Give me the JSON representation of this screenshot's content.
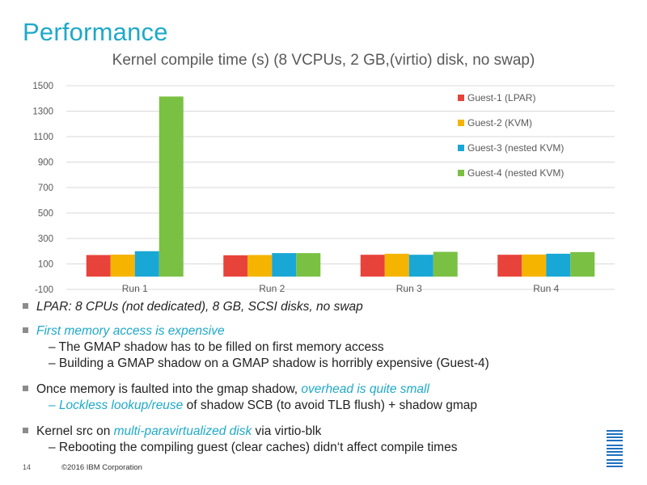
{
  "slide": {
    "title": "Performance",
    "page_number": "14",
    "copyright": "©2016 IBM Corporation",
    "logo_text": "IBM"
  },
  "chart_data": {
    "type": "bar",
    "title": "Kernel compile time (s) (8 VCPUs, 2 GB,(virtio) disk, no swap)",
    "categories": [
      "Run 1",
      "Run 2",
      "Run 3",
      "Run 4"
    ],
    "y_ticks": [
      -100,
      100,
      300,
      500,
      700,
      900,
      1100,
      1300,
      1500
    ],
    "ylim": [
      -100,
      1500
    ],
    "grid": true,
    "legend_position": "top-right",
    "series": [
      {
        "name": "Guest-1 (LPAR)",
        "color": "#e8433a",
        "values": [
          170,
          168,
          172,
          172
        ]
      },
      {
        "name": "Guest-2 (KVM)",
        "color": "#f5b400",
        "values": [
          173,
          170,
          180,
          174
        ]
      },
      {
        "name": "Guest-3 (nested KVM)",
        "color": "#19a7d6",
        "values": [
          200,
          185,
          172,
          180
        ]
      },
      {
        "name": "Guest-4 (nested KVM)",
        "color": "#7ac143",
        "values": [
          1415,
          185,
          195,
          193
        ]
      }
    ]
  },
  "bullets": {
    "b1": "LPAR: 8 CPUs (not dedicated), 8 GB, SCSI disks, no swap",
    "b2": "First memory access is expensive",
    "b2_sub1": "– The GMAP shadow has to be filled on first memory access",
    "b2_sub2": "– Building a GMAP shadow on a GMAP shadow is horribly expensive (Guest-4)",
    "b3_pre": "Once memory is faulted into the gmap shadow, ",
    "b3_hl": "overhead is quite small",
    "b3_sub_dash": "– ",
    "b3_sub_hl": "Lockless lookup/reuse",
    "b3_sub_rest": " of shadow SCB (to avoid TLB flush) + shadow gmap",
    "b4_pre": "Kernel src on ",
    "b4_hl": "multi-paravirtualized disk",
    "b4_post": " via virtio-blk",
    "b4_sub": "– Rebooting the compiling guest (clear caches) didn‘t affect compile times"
  }
}
